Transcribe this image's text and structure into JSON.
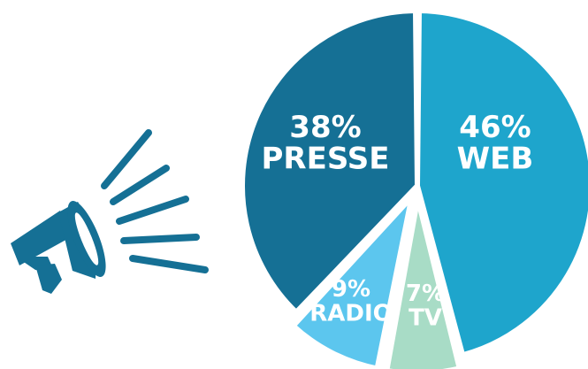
{
  "chart_data": {
    "type": "pie",
    "slices": [
      {
        "name": "WEB",
        "value": 46,
        "label": "46%",
        "color": "#1ea5cc"
      },
      {
        "name": "TV",
        "value": 7,
        "label": "7%",
        "color": "#a8dcc6"
      },
      {
        "name": "RADIO",
        "value": 9,
        "label": "9%",
        "color": "#5cc6ee"
      },
      {
        "name": "PRESSE",
        "value": 38,
        "label": "38%",
        "color": "#157095"
      }
    ]
  },
  "icon": {
    "name": "megaphone-icon",
    "color": "#157095"
  }
}
